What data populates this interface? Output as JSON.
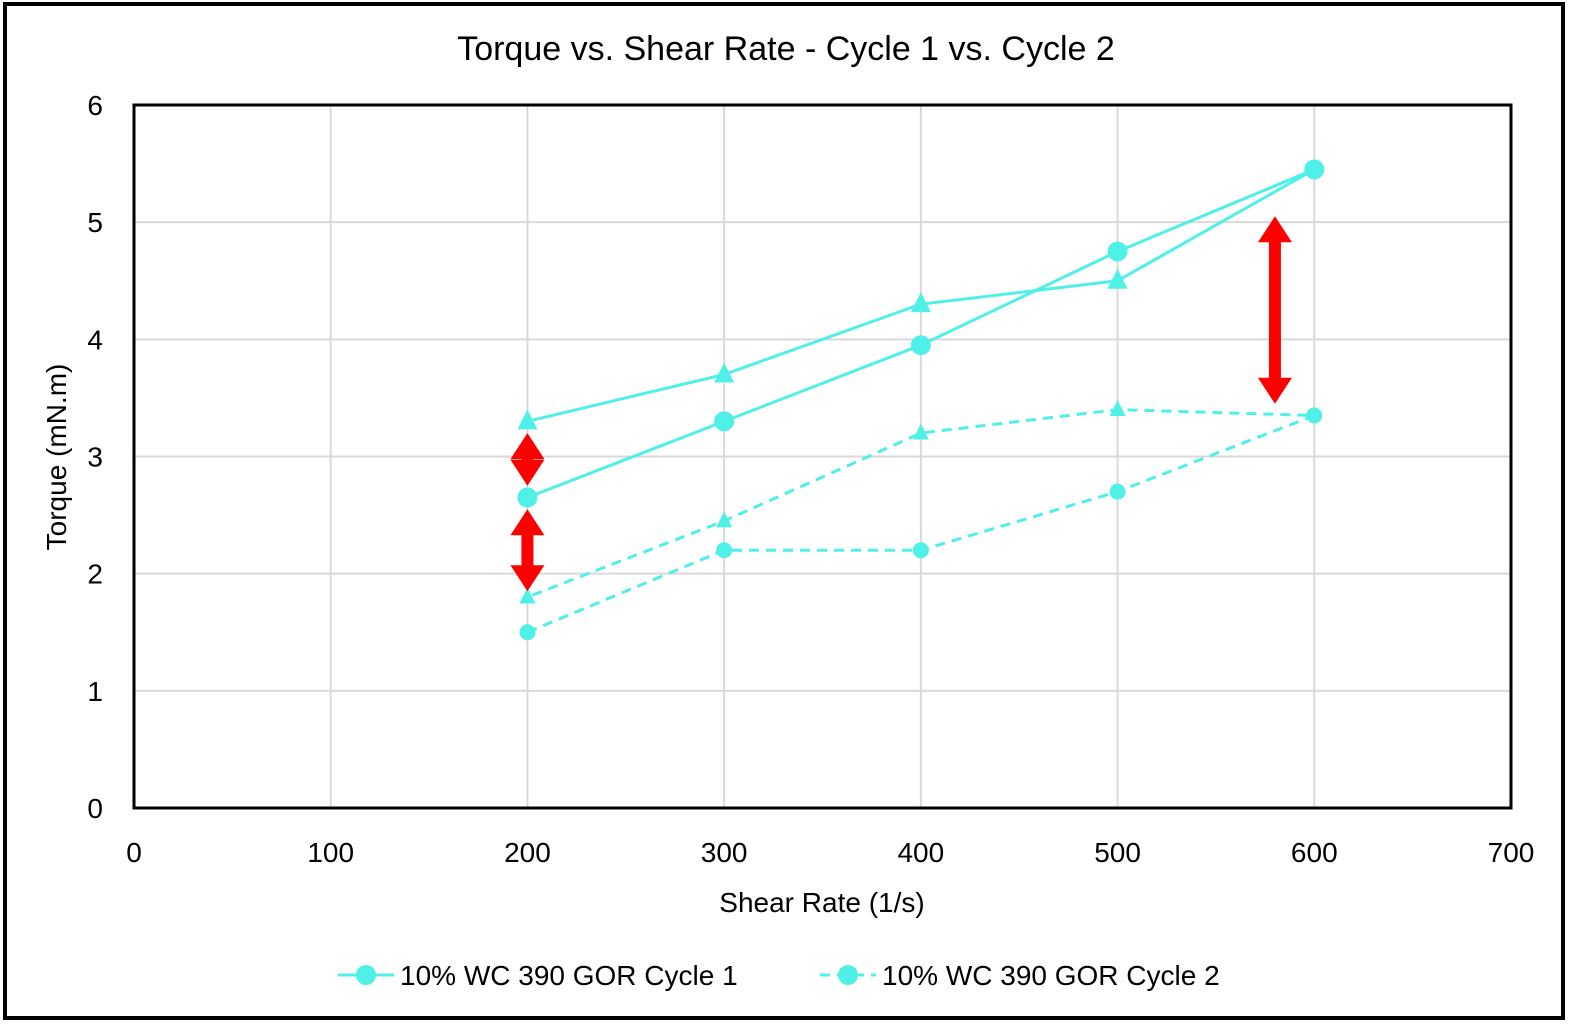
{
  "chart_data": {
    "type": "line",
    "title": "Torque vs. Shear Rate - Cycle 1 vs. Cycle 2",
    "xlabel": "Shear Rate (1/s)",
    "ylabel": "Torque (mN.m)",
    "xlim": [
      0,
      700
    ],
    "ylim": [
      0,
      6
    ],
    "xticks": [
      0,
      100,
      200,
      300,
      400,
      500,
      600,
      700
    ],
    "yticks": [
      0,
      1,
      2,
      3,
      4,
      5,
      6
    ],
    "grid": true,
    "legend_position": "bottom",
    "series": [
      {
        "name": "10% WC 390 GOR Cycle 1",
        "style": "solid",
        "color": "#4FF0E8",
        "loop": [
          {
            "x": 200,
            "y": 2.65,
            "marker": "circle"
          },
          {
            "x": 300,
            "y": 3.3,
            "marker": "circle"
          },
          {
            "x": 400,
            "y": 3.95,
            "marker": "circle"
          },
          {
            "x": 500,
            "y": 4.75,
            "marker": "circle"
          },
          {
            "x": 600,
            "y": 5.45,
            "marker": "circle"
          },
          {
            "x": 500,
            "y": 4.5,
            "marker": "triangle"
          },
          {
            "x": 400,
            "y": 4.3,
            "marker": "triangle"
          },
          {
            "x": 300,
            "y": 3.7,
            "marker": "triangle"
          },
          {
            "x": 200,
            "y": 3.3,
            "marker": "triangle"
          }
        ]
      },
      {
        "name": "10% WC 390 GOR Cycle 2",
        "style": "dashed",
        "color": "#4FF0E8",
        "loop": [
          {
            "x": 200,
            "y": 1.5,
            "marker": "circle"
          },
          {
            "x": 300,
            "y": 2.2,
            "marker": "circle"
          },
          {
            "x": 400,
            "y": 2.2,
            "marker": "circle"
          },
          {
            "x": 500,
            "y": 2.7,
            "marker": "circle"
          },
          {
            "x": 600,
            "y": 3.35,
            "marker": "circle"
          },
          {
            "x": 500,
            "y": 3.4,
            "marker": "triangle"
          },
          {
            "x": 400,
            "y": 3.2,
            "marker": "triangle"
          },
          {
            "x": 300,
            "y": 2.45,
            "marker": "triangle"
          },
          {
            "x": 200,
            "y": 1.8,
            "marker": "triangle"
          }
        ]
      }
    ],
    "annotations": [
      {
        "type": "double-arrow",
        "x": 200,
        "y_from": 2.75,
        "y_to": 3.2,
        "color": "#FF0000"
      },
      {
        "type": "double-arrow",
        "x": 200,
        "y_from": 1.85,
        "y_to": 2.55,
        "color": "#FF0000"
      },
      {
        "type": "double-arrow",
        "x": 580,
        "y_from": 3.45,
        "y_to": 5.05,
        "color": "#FF0000"
      }
    ]
  }
}
